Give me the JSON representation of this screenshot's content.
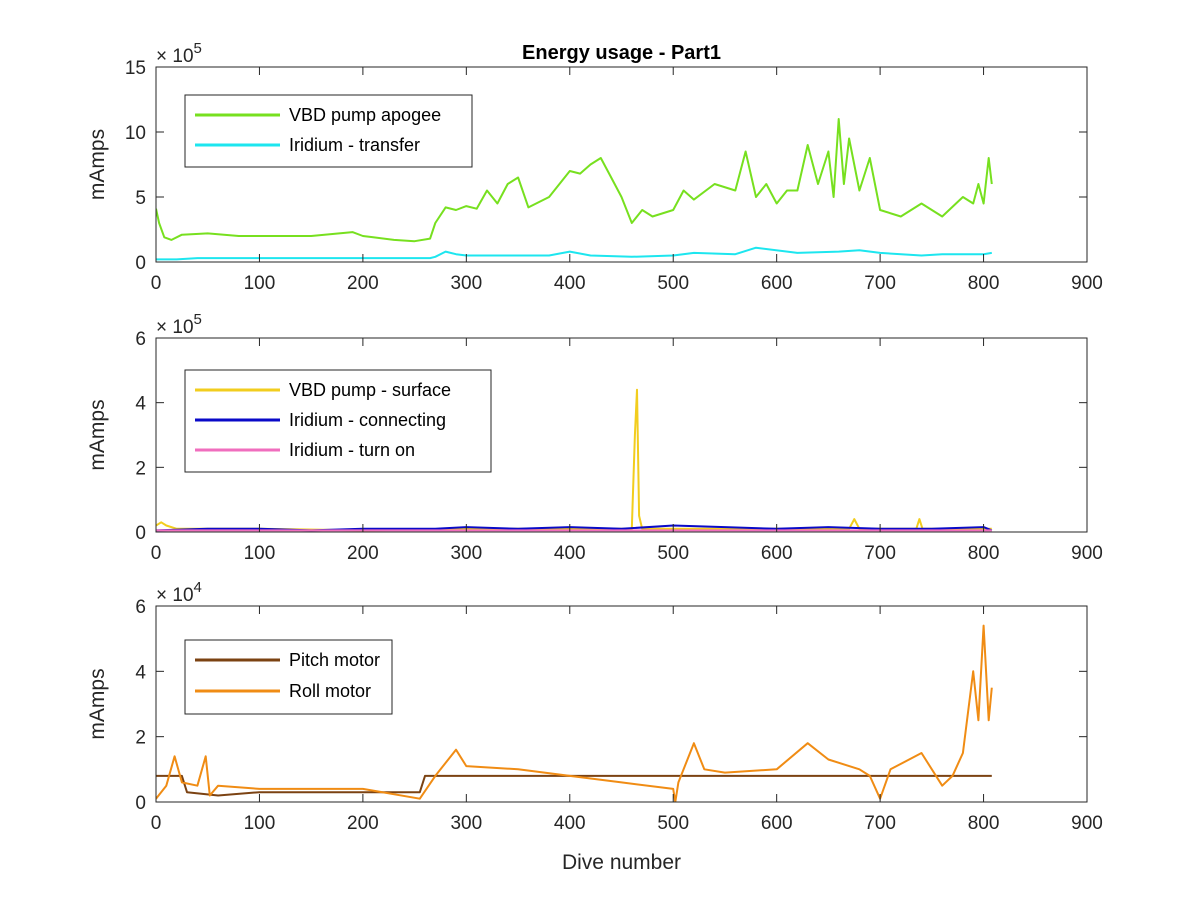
{
  "chart_data": [
    {
      "type": "line",
      "title": "Energy usage - Part1",
      "ylabel": "mAmps",
      "xlabel": "",
      "exponent": "5",
      "xlim": [
        0,
        900
      ],
      "ylim": [
        0,
        15
      ],
      "xticks": [
        "0",
        "100",
        "200",
        "300",
        "400",
        "500",
        "600",
        "700",
        "800",
        "900"
      ],
      "yticks": [
        "0",
        "5",
        "10",
        "15"
      ],
      "grid": false,
      "legend_position": "top-left",
      "series": [
        {
          "name": "VBD pump apogee",
          "color": "#77e01f",
          "x": [
            0,
            3,
            8,
            15,
            25,
            50,
            80,
            100,
            150,
            190,
            200,
            210,
            230,
            250,
            265,
            270,
            280,
            290,
            300,
            310,
            320,
            330,
            340,
            350,
            360,
            380,
            400,
            410,
            420,
            430,
            440,
            450,
            460,
            470,
            480,
            500,
            510,
            520,
            540,
            560,
            570,
            580,
            590,
            600,
            610,
            620,
            630,
            640,
            650,
            655,
            660,
            665,
            670,
            680,
            690,
            700,
            720,
            740,
            760,
            780,
            790,
            795,
            800,
            805,
            808
          ],
          "y": [
            4.1,
            3.0,
            1.9,
            1.7,
            2.1,
            2.2,
            2.0,
            2.0,
            2.0,
            2.3,
            2.0,
            1.9,
            1.7,
            1.6,
            1.8,
            3.0,
            4.2,
            4.0,
            4.3,
            4.1,
            5.5,
            4.5,
            6.0,
            6.5,
            4.2,
            5.0,
            7.0,
            6.8,
            7.5,
            8.0,
            6.5,
            5.0,
            3.0,
            4.0,
            3.5,
            4.0,
            5.5,
            4.8,
            6.0,
            5.5,
            8.5,
            5.0,
            6.0,
            4.5,
            5.5,
            5.5,
            9.0,
            6.0,
            8.5,
            5.0,
            11.0,
            6.0,
            9.5,
            5.5,
            8.0,
            4.0,
            3.5,
            4.5,
            3.5,
            5.0,
            4.5,
            6.0,
            4.5,
            8.0,
            6.0
          ]
        },
        {
          "name": "Iridium - transfer",
          "color": "#1de6ef",
          "x": [
            0,
            20,
            40,
            80,
            120,
            160,
            200,
            240,
            265,
            270,
            280,
            290,
            300,
            340,
            380,
            400,
            420,
            460,
            500,
            520,
            560,
            580,
            620,
            660,
            680,
            700,
            740,
            760,
            800,
            808
          ],
          "y": [
            0.2,
            0.2,
            0.3,
            0.3,
            0.3,
            0.3,
            0.3,
            0.3,
            0.3,
            0.4,
            0.8,
            0.6,
            0.5,
            0.5,
            0.5,
            0.8,
            0.5,
            0.4,
            0.5,
            0.7,
            0.6,
            1.1,
            0.7,
            0.8,
            0.9,
            0.7,
            0.5,
            0.6,
            0.6,
            0.7
          ]
        }
      ]
    },
    {
      "type": "line",
      "title": "",
      "ylabel": "mAmps",
      "xlabel": "",
      "exponent": "5",
      "xlim": [
        0,
        900
      ],
      "ylim": [
        0,
        6
      ],
      "xticks": [
        "0",
        "100",
        "200",
        "300",
        "400",
        "500",
        "600",
        "700",
        "800",
        "900"
      ],
      "yticks": [
        "0",
        "2",
        "4",
        "6"
      ],
      "grid": false,
      "legend_position": "top-left",
      "series": [
        {
          "name": "VBD pump - surface",
          "color": "#f2cd1e",
          "x": [
            0,
            5,
            10,
            20,
            50,
            100,
            200,
            300,
            400,
            460,
            463,
            465,
            467,
            470,
            500,
            600,
            670,
            675,
            680,
            700,
            735,
            738,
            741,
            800,
            808
          ],
          "y": [
            0.2,
            0.3,
            0.2,
            0.1,
            0.1,
            0.1,
            0.05,
            0.1,
            0.1,
            0.1,
            3.0,
            4.4,
            0.5,
            0.1,
            0.1,
            0.1,
            0.1,
            0.4,
            0.1,
            0.1,
            0.1,
            0.4,
            0.1,
            0.1,
            0.1
          ]
        },
        {
          "name": "Iridium - connecting",
          "color": "#0a0ac8",
          "x": [
            0,
            50,
            100,
            150,
            200,
            270,
            300,
            350,
            400,
            450,
            500,
            550,
            600,
            650,
            700,
            750,
            800,
            808
          ],
          "y": [
            0.05,
            0.1,
            0.1,
            0.05,
            0.1,
            0.1,
            0.15,
            0.1,
            0.15,
            0.1,
            0.2,
            0.15,
            0.1,
            0.15,
            0.1,
            0.1,
            0.15,
            0.05
          ]
        },
        {
          "name": "Iridium - turn on",
          "color": "#f06ebe",
          "x": [
            0,
            100,
            200,
            300,
            400,
            500,
            600,
            700,
            808
          ],
          "y": [
            0.05,
            0.05,
            0.05,
            0.05,
            0.05,
            0.05,
            0.05,
            0.05,
            0.05
          ]
        }
      ]
    },
    {
      "type": "line",
      "title": "",
      "ylabel": "mAmps",
      "xlabel": "Dive number",
      "exponent": "4",
      "xlim": [
        0,
        900
      ],
      "ylim": [
        0,
        6
      ],
      "xticks": [
        "0",
        "100",
        "200",
        "300",
        "400",
        "500",
        "600",
        "700",
        "800",
        "900"
      ],
      "yticks": [
        "0",
        "2",
        "4",
        "6"
      ],
      "grid": false,
      "legend_position": "top-left",
      "series": [
        {
          "name": "Pitch motor",
          "color": "#7b4212",
          "x": [
            0,
            25,
            30,
            60,
            100,
            150,
            200,
            255,
            260,
            300,
            400,
            500,
            600,
            700,
            808
          ],
          "y": [
            0.8,
            0.8,
            0.3,
            0.2,
            0.3,
            0.3,
            0.3,
            0.3,
            0.8,
            0.8,
            0.8,
            0.8,
            0.8,
            0.8,
            0.8
          ]
        },
        {
          "name": "Roll motor",
          "color": "#f08c14",
          "x": [
            0,
            10,
            18,
            25,
            40,
            48,
            52,
            60,
            100,
            150,
            200,
            255,
            270,
            290,
            300,
            350,
            400,
            450,
            500,
            502,
            505,
            520,
            530,
            550,
            600,
            630,
            650,
            680,
            690,
            700,
            710,
            740,
            760,
            770,
            780,
            790,
            795,
            800,
            805,
            808
          ],
          "y": [
            0.1,
            0.5,
            1.4,
            0.6,
            0.5,
            1.4,
            0.2,
            0.5,
            0.4,
            0.4,
            0.4,
            0.1,
            0.8,
            1.6,
            1.1,
            1.0,
            0.8,
            0.6,
            0.4,
            0.0,
            0.6,
            1.8,
            1.0,
            0.9,
            1.0,
            1.8,
            1.3,
            1.0,
            0.8,
            0.1,
            1.0,
            1.5,
            0.5,
            0.8,
            1.5,
            4.0,
            2.5,
            5.4,
            2.5,
            3.5
          ]
        }
      ]
    }
  ]
}
